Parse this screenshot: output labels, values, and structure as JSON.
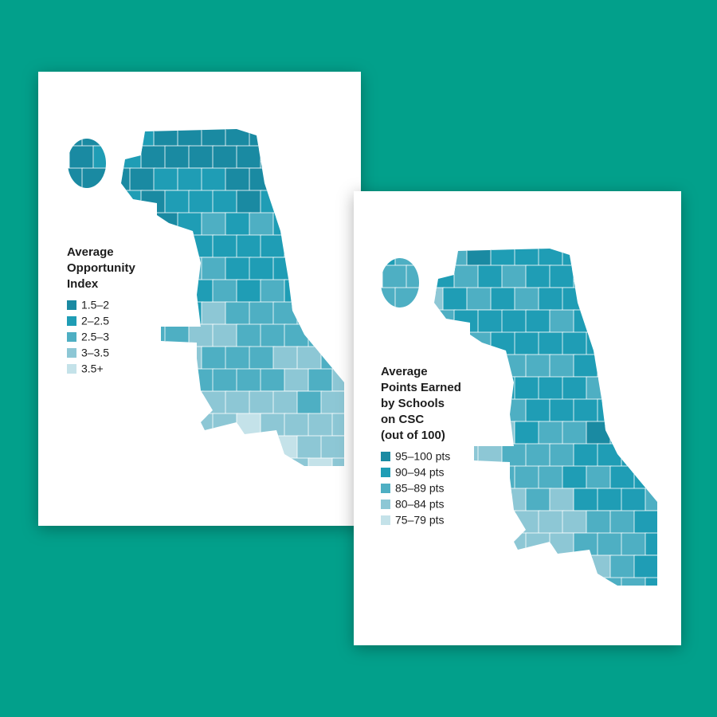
{
  "cards": [
    {
      "legend": {
        "title": [
          "Average",
          "Opportunity",
          "Index"
        ],
        "items": [
          {
            "label": "1.5–2",
            "color": "#1a8aa2"
          },
          {
            "label": "2–2.5",
            "color": "#1f9db5"
          },
          {
            "label": "2.5–3",
            "color": "#4eafc3"
          },
          {
            "label": "3–3.5",
            "color": "#8dc7d5"
          },
          {
            "label": "3.5+",
            "color": "#c4e2e9"
          }
        ]
      }
    },
    {
      "legend": {
        "title": [
          "Average",
          "Points Earned",
          "by Schools",
          "on CSC",
          "(out of 100)"
        ],
        "items": [
          {
            "label": "95–100 pts",
            "color": "#1a8aa2"
          },
          {
            "label": "90–94 pts",
            "color": "#1f9db5"
          },
          {
            "label": "85–89 pts",
            "color": "#4eafc3"
          },
          {
            "label": "80–84 pts",
            "color": "#8dc7d5"
          },
          {
            "label": "75–79 pts",
            "color": "#c4e2e9"
          }
        ]
      }
    }
  ]
}
